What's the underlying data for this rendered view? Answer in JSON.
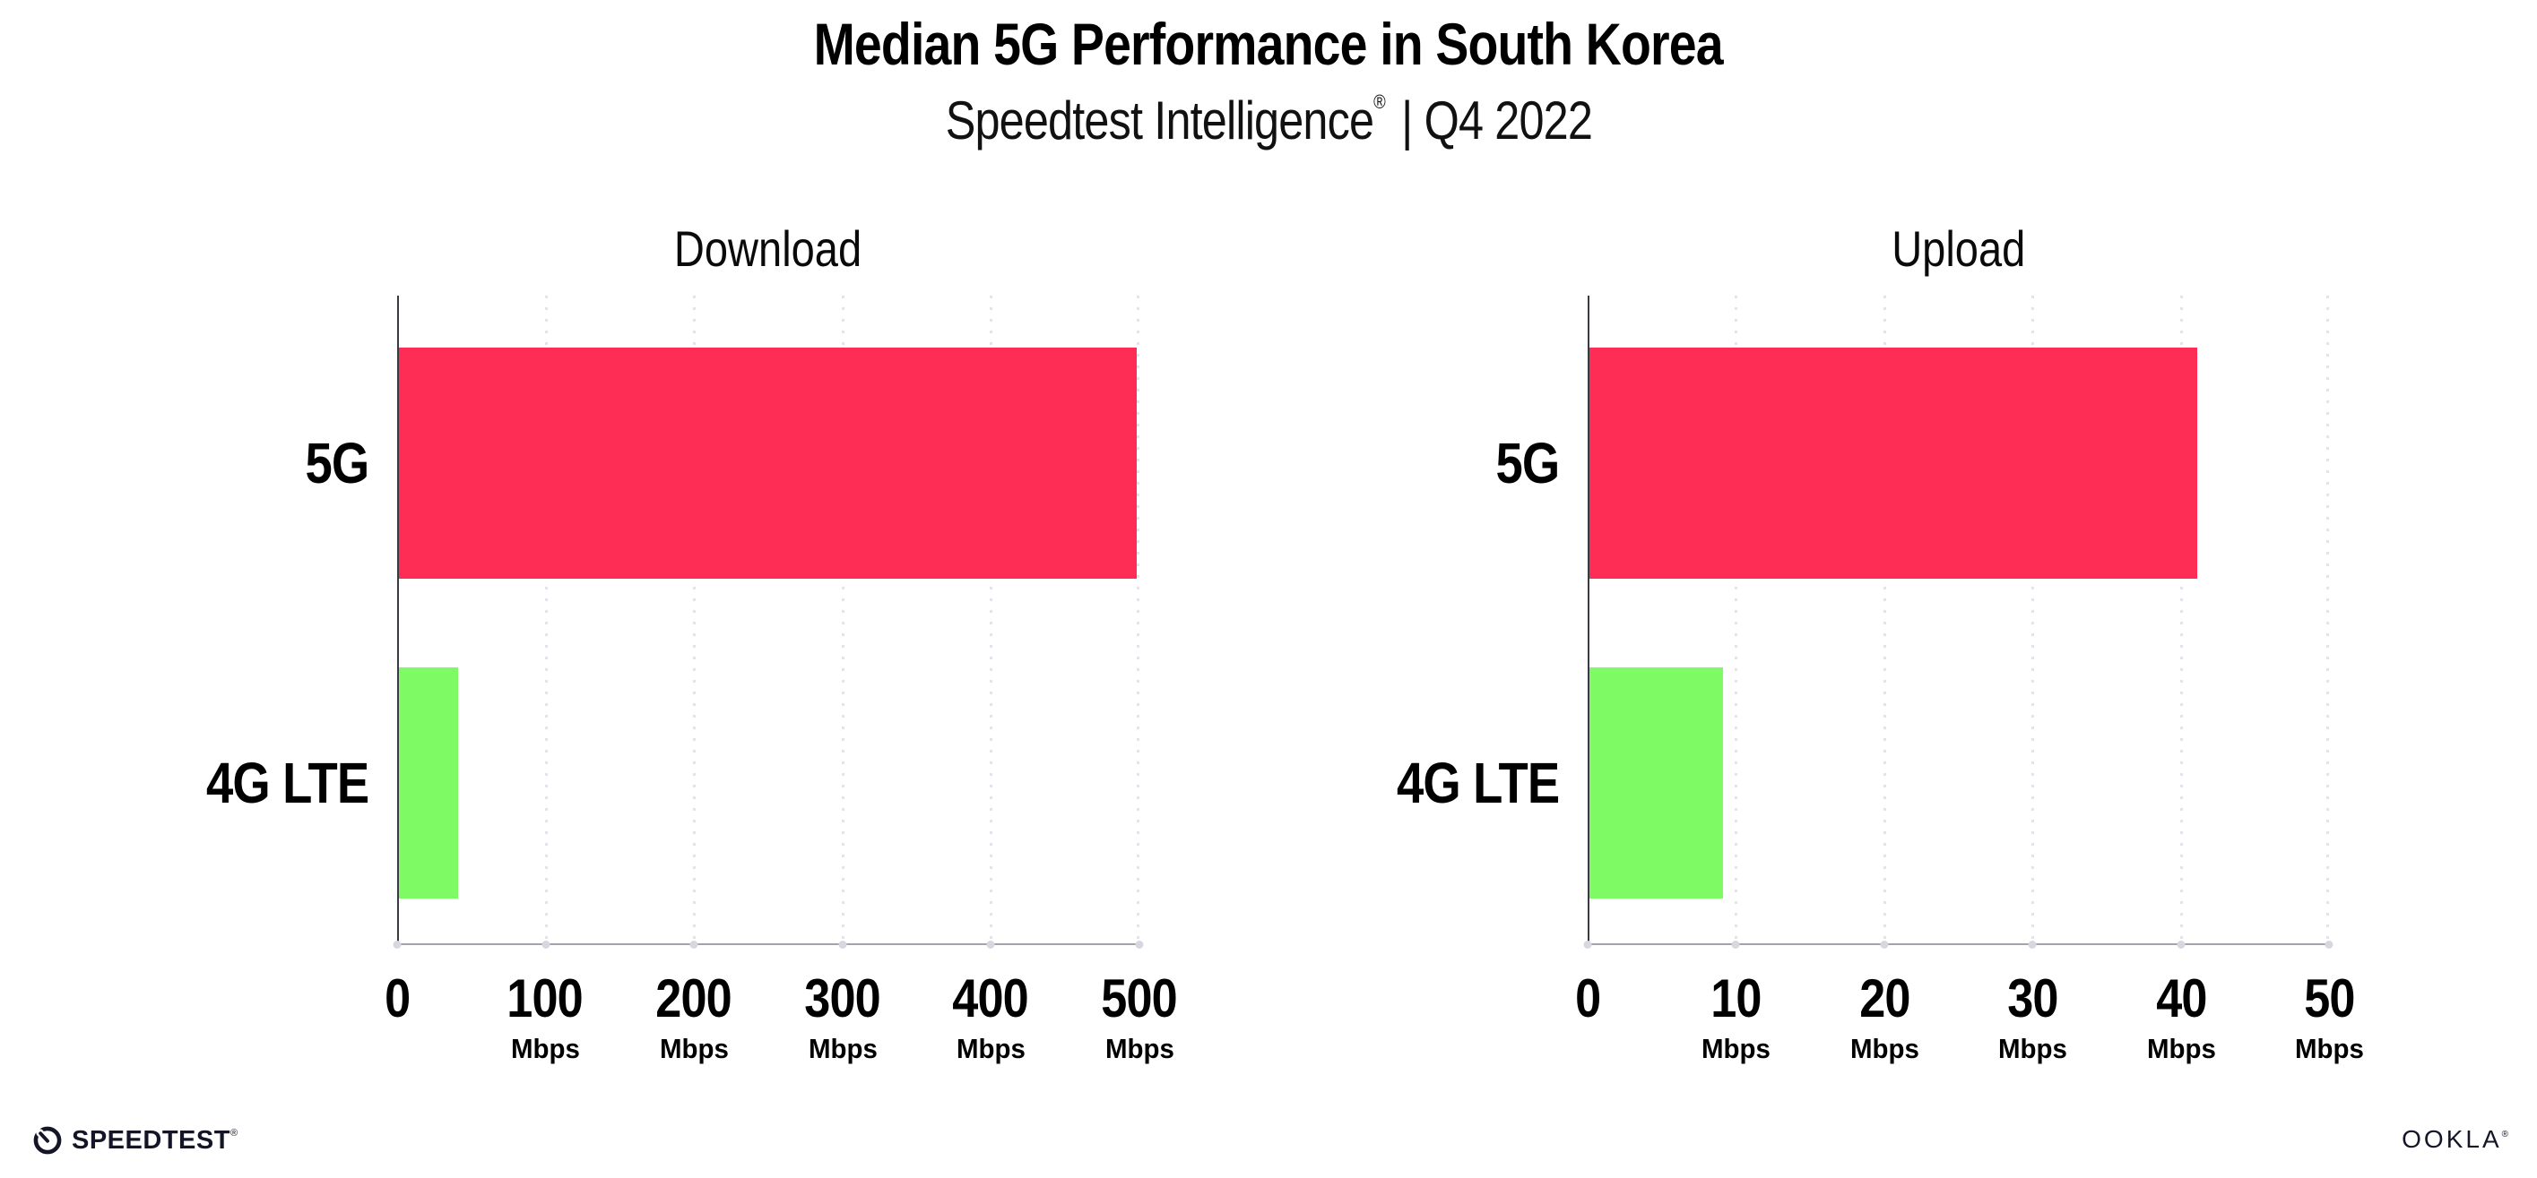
{
  "header": {
    "title": "Median 5G Performance in South Korea",
    "subtitle_brand": "Speedtest Intelligence",
    "subtitle_reg": "®",
    "subtitle_period": "| Q4 2022"
  },
  "colors": {
    "bar_5g": "#FD2D55",
    "bar_4g_lte": "#7DFA64",
    "y_axis": "#3a3a42",
    "x_axis": "#a3a3ab",
    "gridline": "#e3e3ec"
  },
  "chart_data": [
    {
      "type": "bar",
      "orientation": "horizontal",
      "title": "Download",
      "categories": [
        "5G",
        "4G LTE"
      ],
      "values": [
        497,
        40
      ],
      "unit": "Mbps",
      "xmax": 500,
      "xlim": [
        0,
        500
      ],
      "grid": "dotted-vertical",
      "legend": "none",
      "bar_colors": [
        "#FD2D55",
        "#7DFA64"
      ],
      "ticks": [
        {
          "label": "0",
          "unit": ""
        },
        {
          "label": "100",
          "unit": "Mbps"
        },
        {
          "label": "200",
          "unit": "Mbps"
        },
        {
          "label": "300",
          "unit": "Mbps"
        },
        {
          "label": "400",
          "unit": "Mbps"
        },
        {
          "label": "500",
          "unit": "Mbps"
        }
      ]
    },
    {
      "type": "bar",
      "orientation": "horizontal",
      "title": "Upload",
      "categories": [
        "5G",
        "4G LTE"
      ],
      "values": [
        41,
        9
      ],
      "unit": "Mbps",
      "xmax": 50,
      "xlim": [
        0,
        50
      ],
      "grid": "dotted-vertical",
      "legend": "none",
      "bar_colors": [
        "#FD2D55",
        "#7DFA64"
      ],
      "ticks": [
        {
          "label": "0",
          "unit": ""
        },
        {
          "label": "10",
          "unit": "Mbps"
        },
        {
          "label": "20",
          "unit": "Mbps"
        },
        {
          "label": "30",
          "unit": "Mbps"
        },
        {
          "label": "40",
          "unit": "Mbps"
        },
        {
          "label": "50",
          "unit": "Mbps"
        }
      ]
    }
  ],
  "footer": {
    "speedtest_label": "SPEEDTEST",
    "speedtest_mark": "®",
    "ookla_label": "OOKLA",
    "ookla_mark": "®"
  }
}
